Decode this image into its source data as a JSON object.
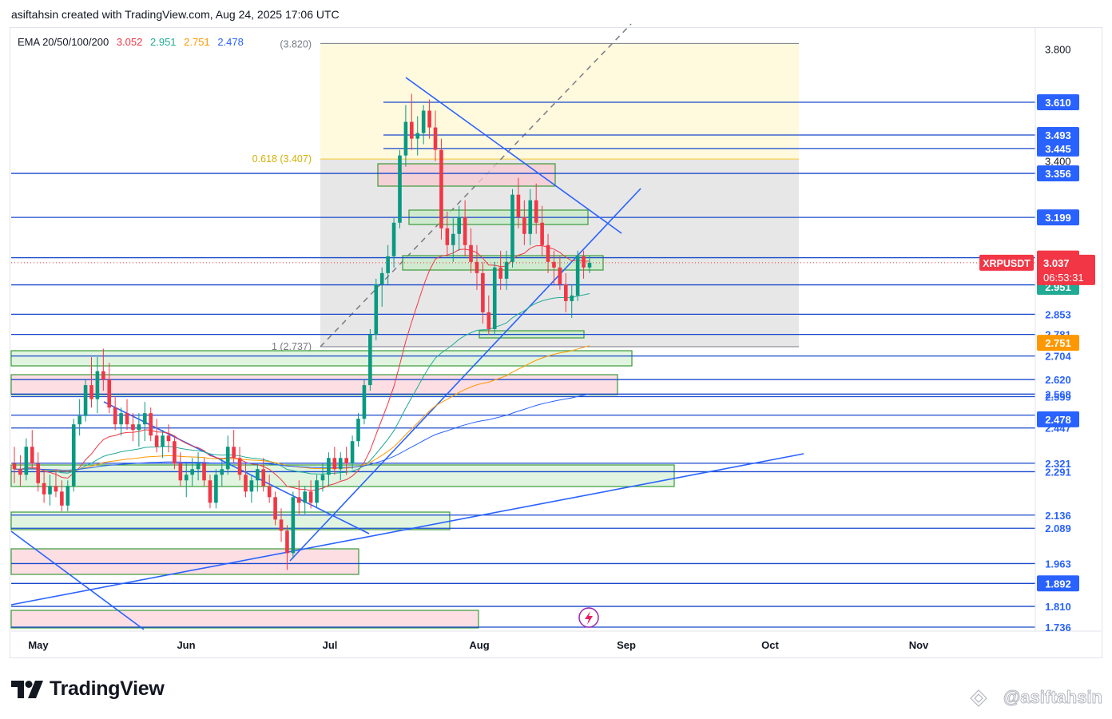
{
  "caption": "asiftahsin created with TradingView.com, Aug 24, 2025 17:06 UTC",
  "ema_legend": {
    "label": "EMA 20/50/100/200",
    "ema20": "3.052",
    "ema50": "2.951",
    "ema100": "2.751",
    "ema200": "2.478",
    "colors": {
      "ema20": "#f23645",
      "ema50": "#22ab94",
      "ema100": "#ff9800",
      "ema200": "#2962ff"
    }
  },
  "symbol": "XRPUSDT",
  "countdown": "06:53:31",
  "branding": {
    "name": "TradingView",
    "watermark": "@asiftahsin"
  },
  "chart_data": {
    "type": "candlestick",
    "symbol": "XRPUSDT",
    "x_months": [
      "May",
      "Jun",
      "Jul",
      "Aug",
      "Sep",
      "Oct",
      "Nov"
    ],
    "y_ticks": [
      "3.800",
      "3.400"
    ],
    "fib_levels": [
      {
        "label": "0.618 (3.407)",
        "value": 3.407
      },
      {
        "label": "1 (2.737)",
        "value": 2.737
      },
      {
        "label": "(3.820)",
        "value": 3.82
      }
    ],
    "price_lines": [
      {
        "value": "3.610",
        "badge": true
      },
      {
        "value": "3.493",
        "badge": true
      },
      {
        "value": "3.445",
        "badge": true
      },
      {
        "value": "3.356",
        "badge": true
      },
      {
        "value": "3.199",
        "badge": true
      },
      {
        "value": "3.055",
        "badge": false
      },
      {
        "value": "2.958",
        "badge": false
      },
      {
        "value": "2.853",
        "badge": false
      },
      {
        "value": "2.781",
        "badge": false
      },
      {
        "value": "2.704",
        "badge": false
      },
      {
        "value": "2.620",
        "badge": false
      },
      {
        "value": "2.568",
        "badge": false
      },
      {
        "value": "2.559",
        "badge": false
      },
      {
        "value": "2.493",
        "badge": false
      },
      {
        "value": "2.447",
        "badge": false
      },
      {
        "value": "2.321",
        "badge": false
      },
      {
        "value": "2.291",
        "badge": false
      },
      {
        "value": "2.136",
        "badge": false
      },
      {
        "value": "2.089",
        "badge": false
      },
      {
        "value": "1.963",
        "badge": false
      },
      {
        "value": "1.892",
        "badge": true
      },
      {
        "value": "1.810",
        "badge": false
      },
      {
        "value": "1.736",
        "badge": false
      }
    ],
    "highlighted_values": [
      {
        "value": "3.052",
        "bg": "#f23645"
      },
      {
        "value": "3.037",
        "bg": "#f23645"
      },
      {
        "value": "2.951",
        "bg": "#22ab94"
      },
      {
        "value": "2.751",
        "bg": "#ff9800"
      },
      {
        "value": "2.478",
        "bg": "#2962ff"
      }
    ],
    "last_price": 3.037,
    "candles_daily_approx": [
      [
        2.32,
        2.38,
        2.25,
        2.3
      ],
      [
        2.3,
        2.35,
        2.24,
        2.28
      ],
      [
        2.28,
        2.41,
        2.26,
        2.38
      ],
      [
        2.38,
        2.44,
        2.3,
        2.32
      ],
      [
        2.32,
        2.36,
        2.22,
        2.25
      ],
      [
        2.25,
        2.3,
        2.18,
        2.21
      ],
      [
        2.21,
        2.28,
        2.17,
        2.24
      ],
      [
        2.24,
        2.3,
        2.2,
        2.22
      ],
      [
        2.22,
        2.26,
        2.15,
        2.17
      ],
      [
        2.17,
        2.26,
        2.15,
        2.24
      ],
      [
        2.24,
        2.48,
        2.22,
        2.46
      ],
      [
        2.46,
        2.55,
        2.42,
        2.49
      ],
      [
        2.49,
        2.62,
        2.47,
        2.6
      ],
      [
        2.6,
        2.7,
        2.52,
        2.55
      ],
      [
        2.55,
        2.7,
        2.5,
        2.65
      ],
      [
        2.65,
        2.73,
        2.58,
        2.62
      ],
      [
        2.62,
        2.68,
        2.5,
        2.52
      ],
      [
        2.52,
        2.56,
        2.44,
        2.46
      ],
      [
        2.46,
        2.52,
        2.42,
        2.5
      ],
      [
        2.5,
        2.55,
        2.44,
        2.46
      ],
      [
        2.46,
        2.5,
        2.4,
        2.44
      ],
      [
        2.44,
        2.5,
        2.38,
        2.46
      ],
      [
        2.46,
        2.54,
        2.4,
        2.5
      ],
      [
        2.5,
        2.52,
        2.4,
        2.42
      ],
      [
        2.42,
        2.48,
        2.36,
        2.38
      ],
      [
        2.38,
        2.44,
        2.34,
        2.42
      ],
      [
        2.42,
        2.46,
        2.36,
        2.4
      ],
      [
        2.4,
        2.42,
        2.3,
        2.32
      ],
      [
        2.32,
        2.36,
        2.24,
        2.26
      ],
      [
        2.26,
        2.32,
        2.2,
        2.28
      ],
      [
        2.28,
        2.34,
        2.24,
        2.3
      ],
      [
        2.3,
        2.36,
        2.26,
        2.32
      ],
      [
        2.32,
        2.34,
        2.24,
        2.26
      ],
      [
        2.26,
        2.28,
        2.16,
        2.18
      ],
      [
        2.18,
        2.3,
        2.16,
        2.28
      ],
      [
        2.28,
        2.34,
        2.24,
        2.3
      ],
      [
        2.3,
        2.42,
        2.28,
        2.38
      ],
      [
        2.38,
        2.44,
        2.32,
        2.34
      ],
      [
        2.34,
        2.38,
        2.26,
        2.28
      ],
      [
        2.28,
        2.32,
        2.2,
        2.22
      ],
      [
        2.22,
        2.28,
        2.18,
        2.26
      ],
      [
        2.26,
        2.32,
        2.22,
        2.3
      ],
      [
        2.3,
        2.34,
        2.22,
        2.24
      ],
      [
        2.24,
        2.28,
        2.18,
        2.2
      ],
      [
        2.2,
        2.22,
        2.1,
        2.12
      ],
      [
        2.12,
        2.16,
        2.04,
        2.08
      ],
      [
        2.08,
        2.1,
        1.94,
        2.0
      ],
      [
        2.0,
        2.22,
        1.98,
        2.2
      ],
      [
        2.2,
        2.26,
        2.14,
        2.18
      ],
      [
        2.18,
        2.24,
        2.14,
        2.22
      ],
      [
        2.22,
        2.26,
        2.16,
        2.18
      ],
      [
        2.18,
        2.28,
        2.16,
        2.26
      ],
      [
        2.26,
        2.32,
        2.22,
        2.28
      ],
      [
        2.28,
        2.36,
        2.24,
        2.34
      ],
      [
        2.34,
        2.38,
        2.28,
        2.3
      ],
      [
        2.3,
        2.36,
        2.26,
        2.34
      ],
      [
        2.34,
        2.38,
        2.28,
        2.32
      ],
      [
        2.32,
        2.42,
        2.3,
        2.4
      ],
      [
        2.4,
        2.5,
        2.38,
        2.48
      ],
      [
        2.48,
        2.62,
        2.46,
        2.6
      ],
      [
        2.6,
        2.8,
        2.58,
        2.78
      ],
      [
        2.78,
        2.98,
        2.76,
        2.96
      ],
      [
        2.96,
        3.02,
        2.88,
        3.0
      ],
      [
        3.0,
        3.1,
        2.96,
        3.06
      ],
      [
        3.06,
        3.2,
        3.02,
        3.18
      ],
      [
        3.18,
        3.44,
        3.16,
        3.42
      ],
      [
        3.42,
        3.6,
        3.38,
        3.54
      ],
      [
        3.54,
        3.64,
        3.44,
        3.48
      ],
      [
        3.48,
        3.56,
        3.42,
        3.5
      ],
      [
        3.5,
        3.6,
        3.46,
        3.58
      ],
      [
        3.58,
        3.62,
        3.48,
        3.52
      ],
      [
        3.52,
        3.58,
        3.4,
        3.44
      ],
      [
        3.44,
        3.48,
        3.12,
        3.16
      ],
      [
        3.16,
        3.22,
        3.06,
        3.1
      ],
      [
        3.1,
        3.2,
        3.04,
        3.14
      ],
      [
        3.14,
        3.24,
        3.08,
        3.2
      ],
      [
        3.2,
        3.26,
        3.06,
        3.1
      ],
      [
        3.1,
        3.16,
        3.0,
        3.04
      ],
      [
        3.04,
        3.1,
        2.94,
        3.0
      ],
      [
        3.0,
        3.04,
        2.82,
        2.86
      ],
      [
        2.86,
        2.92,
        2.78,
        2.8
      ],
      [
        2.8,
        3.04,
        2.78,
        3.02
      ],
      [
        3.02,
        3.08,
        2.94,
        2.98
      ],
      [
        2.98,
        3.08,
        2.94,
        3.04
      ],
      [
        3.04,
        3.3,
        3.02,
        3.28
      ],
      [
        3.28,
        3.34,
        3.16,
        3.2
      ],
      [
        3.2,
        3.26,
        3.1,
        3.14
      ],
      [
        3.14,
        3.3,
        3.1,
        3.26
      ],
      [
        3.26,
        3.32,
        3.14,
        3.18
      ],
      [
        3.18,
        3.24,
        3.06,
        3.1
      ],
      [
        3.1,
        3.14,
        3.0,
        3.04
      ],
      [
        3.04,
        3.08,
        2.96,
        3.02
      ],
      [
        3.02,
        3.06,
        2.94,
        2.96
      ],
      [
        2.96,
        3.0,
        2.86,
        2.9
      ],
      [
        2.9,
        2.96,
        2.84,
        2.92
      ],
      [
        2.92,
        3.08,
        2.9,
        3.06
      ],
      [
        3.06,
        3.08,
        2.98,
        3.02
      ],
      [
        3.02,
        3.06,
        3.0,
        3.037
      ]
    ]
  }
}
